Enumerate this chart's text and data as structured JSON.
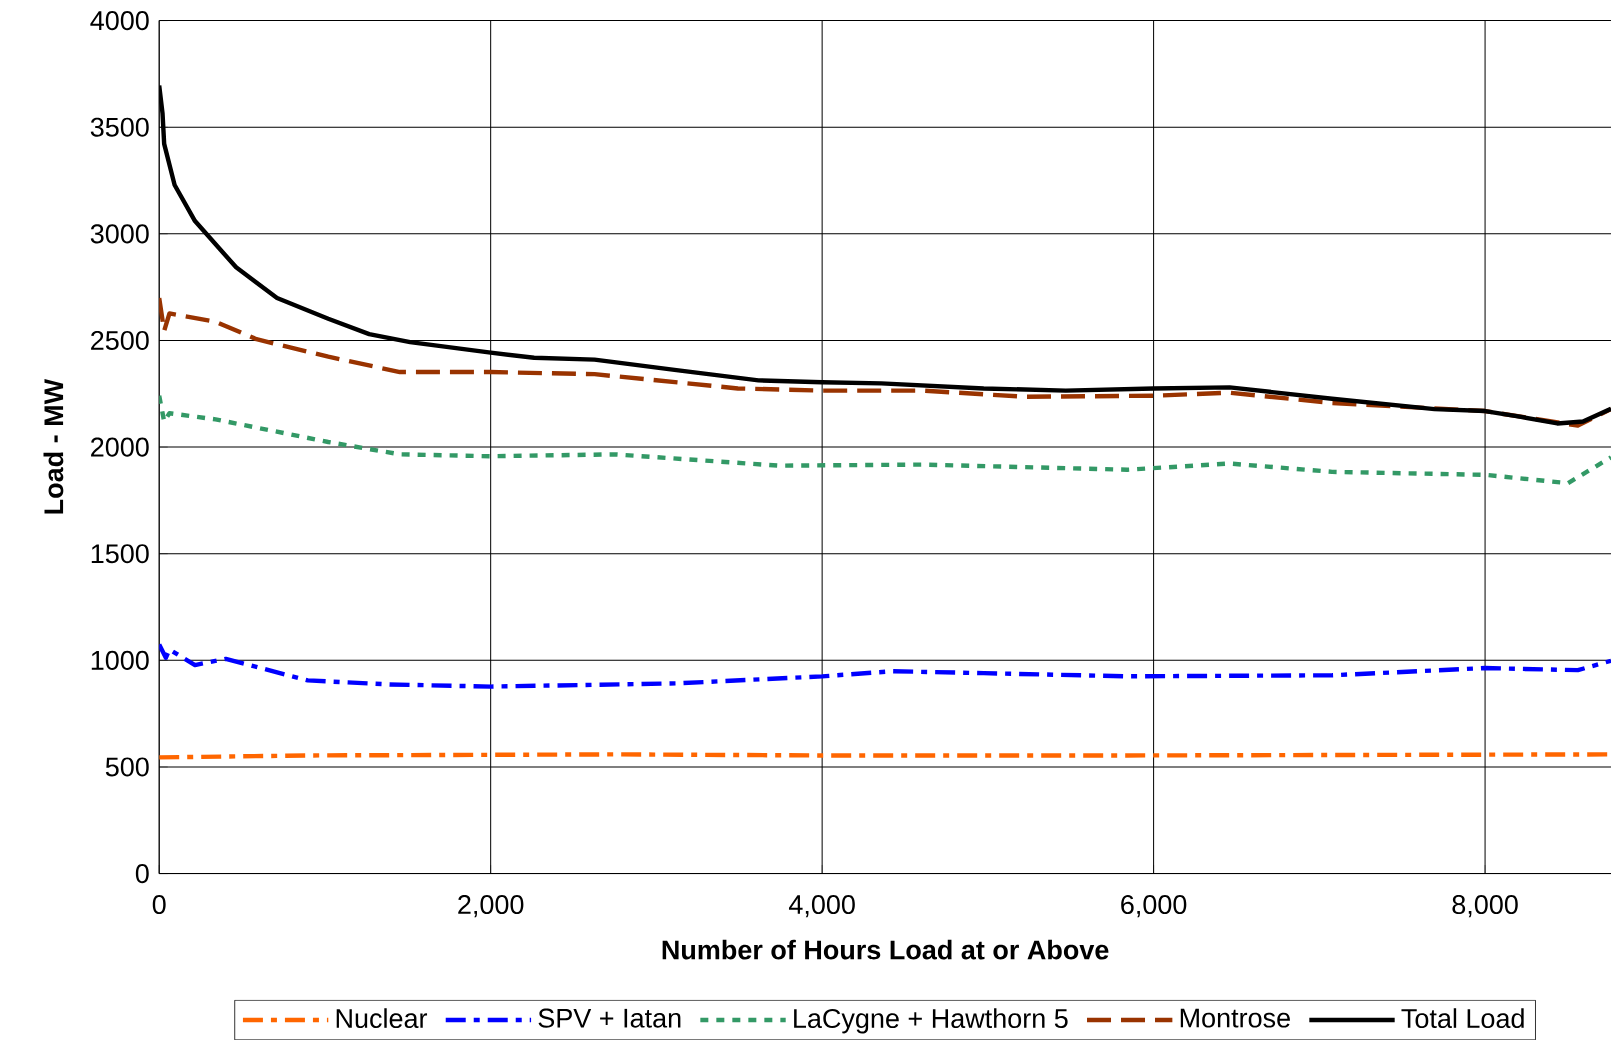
{
  "chart_data": {
    "type": "line",
    "xlabel": "Number of Hours Load at or Above",
    "ylabel": "Load - MW",
    "xlim": [
      0,
      8760
    ],
    "ylim": [
      0,
      4000
    ],
    "xticks": [
      0,
      {
        "value": 2000,
        "label": "2,000"
      },
      {
        "value": 4000,
        "label": "4,000"
      },
      {
        "value": 6000,
        "label": "6,000"
      },
      {
        "value": 8000,
        "label": "8,000"
      }
    ],
    "yticks": [
      0,
      500,
      1000,
      1500,
      2000,
      2500,
      3000,
      3500,
      4000
    ],
    "grid": true,
    "legend": "bottom",
    "series": [
      {
        "name": "Nuclear",
        "color": "#ff6600",
        "line_style": "dashdot",
        "x": [
          0,
          896,
          2750,
          4000,
          5841,
          8760
        ],
        "values": [
          545,
          554,
          559,
          554,
          554,
          559
        ]
      },
      {
        "name": "SPV + Iatan",
        "color": "#0000ff",
        "line_style": "dashdot",
        "x": [
          0,
          40,
          62,
          216,
          402,
          896,
          1390,
          2000,
          3121,
          4000,
          4425,
          4975,
          5841,
          7077,
          8000,
          8560,
          8760
        ],
        "values": [
          1075,
          1012,
          1051,
          978,
          1007,
          906,
          887,
          877,
          892,
          925,
          949,
          940,
          925,
          930,
          964,
          954,
          998
        ]
      },
      {
        "name": "LaCygne + Hawthorn 5",
        "color": "#339966",
        "line_style": "dotted",
        "x": [
          0,
          30,
          62,
          340,
          1020,
          1452,
          2000,
          2750,
          3740,
          4604,
          5841,
          6459,
          7077,
          8000,
          8500,
          8760
        ],
        "values": [
          2241,
          2120,
          2159,
          2130,
          2024,
          1966,
          1957,
          1966,
          1913,
          1918,
          1894,
          1923,
          1884,
          1870,
          1831,
          1952
        ]
      },
      {
        "name": "Montrose",
        "color": "#993300",
        "line_style": "dashed",
        "x": [
          0,
          30,
          62,
          340,
          587,
          1020,
          1452,
          2000,
          2627,
          3492,
          4000,
          4604,
          5223,
          6000,
          6459,
          7077,
          8000,
          8560,
          8760
        ],
        "values": [
          2699,
          2545,
          2627,
          2588,
          2506,
          2424,
          2352,
          2352,
          2342,
          2275,
          2265,
          2265,
          2236,
          2241,
          2255,
          2207,
          2169,
          2101,
          2178
        ]
      },
      {
        "name": "Total Load",
        "color": "#000000",
        "line_style": "solid",
        "x": [
          0,
          20,
          30,
          93,
          216,
          464,
          711,
          1020,
          1267,
          1514,
          2000,
          2262,
          2627,
          3121,
          3616,
          4000,
          4357,
          4975,
          5470,
          6000,
          6459,
          7077,
          7695,
          8000,
          8190,
          8436,
          8591,
          8760
        ],
        "values": [
          3696,
          3566,
          3422,
          3229,
          3060,
          2843,
          2699,
          2602,
          2530,
          2492,
          2443,
          2419,
          2410,
          2361,
          2313,
          2304,
          2299,
          2275,
          2265,
          2275,
          2280,
          2227,
          2178,
          2169,
          2145,
          2111,
          2120,
          2180
        ]
      }
    ]
  }
}
